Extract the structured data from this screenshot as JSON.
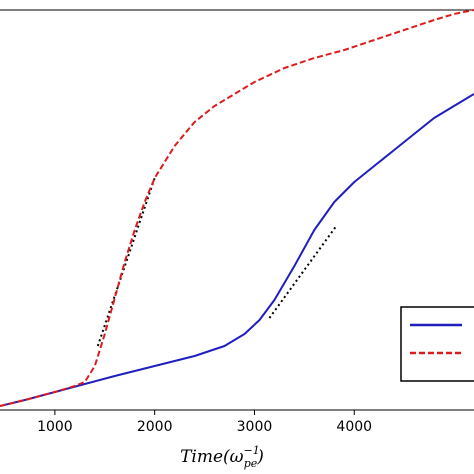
{
  "chart_data": {
    "type": "line",
    "title": "",
    "ylabel": "",
    "xlabel_parts": {
      "base": "Time(ω",
      "sub": "pe",
      "sup": "−1",
      "close": ")"
    },
    "xlim": [
      450,
      5200
    ],
    "ylim": [
      0,
      1
    ],
    "grid": false,
    "legend_placement": "lower-right",
    "x_ticks": [
      1000,
      2000,
      3000,
      4000
    ],
    "x_tick_labels": [
      "1000",
      "2000",
      "3000",
      "4000"
    ],
    "series": [
      {
        "color": "#1f1fbf",
        "style": "solid",
        "x": [
          450,
          700,
          1000,
          1300,
          1600,
          2000,
          2400,
          2700,
          2900,
          3050,
          3200,
          3400,
          3600,
          3800,
          4000,
          4200,
          4400,
          4600,
          4800,
          5000,
          5200
        ],
        "y": [
          0.01,
          0.025,
          0.045,
          0.065,
          0.085,
          0.11,
          0.135,
          0.16,
          0.19,
          0.225,
          0.275,
          0.36,
          0.45,
          0.52,
          0.57,
          0.61,
          0.65,
          0.69,
          0.73,
          0.76,
          0.79
        ]
      },
      {
        "color": "#dd1c1c",
        "style": "dashed",
        "x": [
          450,
          700,
          1000,
          1200,
          1300,
          1400,
          1500,
          1600,
          1700,
          1800,
          1900,
          2000,
          2200,
          2400,
          2600,
          2800,
          3000,
          3300,
          3600,
          3900,
          4200,
          4500,
          4800,
          5000,
          5200
        ],
        "y": [
          0.01,
          0.025,
          0.045,
          0.06,
          0.07,
          0.11,
          0.19,
          0.28,
          0.37,
          0.45,
          0.52,
          0.58,
          0.66,
          0.72,
          0.76,
          0.79,
          0.82,
          0.855,
          0.88,
          0.9,
          0.925,
          0.95,
          0.975,
          0.99,
          1.0
        ]
      }
    ],
    "reference_lines": [
      {
        "x": [
          1430,
          2000
        ],
        "y": [
          0.16,
          0.58
        ],
        "color": "#000000",
        "style": "dotted"
      },
      {
        "x": [
          3150,
          3820
        ],
        "y": [
          0.23,
          0.46
        ],
        "color": "#000000",
        "style": "dotted"
      }
    ],
    "legend_entries": [
      {
        "color": "#1f1fbf",
        "style": "solid",
        "label": ""
      },
      {
        "color": "#dd1c1c",
        "style": "dashed",
        "label": ""
      }
    ]
  }
}
